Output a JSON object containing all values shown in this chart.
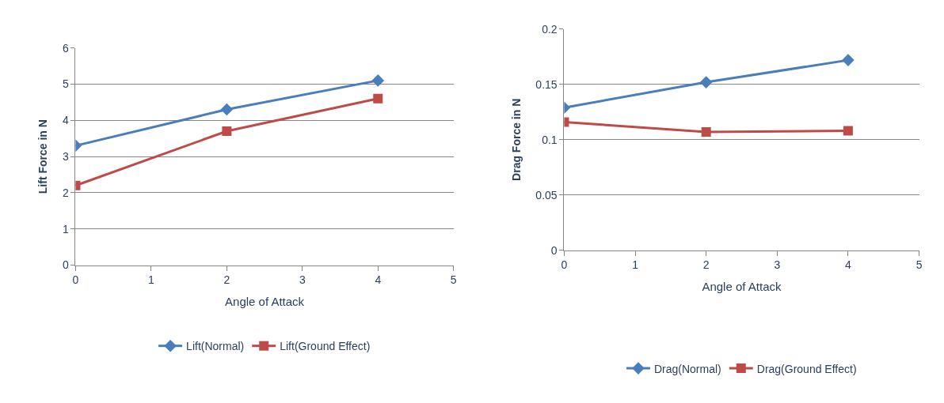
{
  "chart_data": [
    {
      "type": "line",
      "xlabel": "Angle of Attack",
      "ylabel": "Lift Force in N",
      "xlim": [
        0,
        5
      ],
      "xticks": [
        0,
        1,
        2,
        3,
        4,
        5
      ],
      "ylim": [
        0,
        6
      ],
      "yticks": [
        0,
        1,
        2,
        3,
        4,
        5,
        6
      ],
      "grid": "y",
      "legend": "bottom",
      "x": [
        0,
        2,
        4
      ],
      "series": [
        {
          "name": "Lift(Normal)",
          "color": "#4a7ebb",
          "marker": "diamond",
          "values": [
            3.3,
            4.3,
            5.1
          ]
        },
        {
          "name": "Lift(Ground Effect)",
          "color": "#be4b48",
          "marker": "square",
          "values": [
            2.2,
            3.7,
            4.6
          ]
        }
      ]
    },
    {
      "type": "line",
      "xlabel": "Angle of Attack",
      "ylabel": "Drag Force in N",
      "xlim": [
        0,
        5
      ],
      "xticks": [
        0,
        1,
        2,
        3,
        4,
        5
      ],
      "ylim": [
        0,
        0.2
      ],
      "yticks": [
        0,
        0.05,
        0.1,
        0.15,
        0.2
      ],
      "grid": "y",
      "legend": "bottom",
      "x": [
        0,
        2,
        4
      ],
      "series": [
        {
          "name": "Drag(Normal)",
          "color": "#4a7ebb",
          "marker": "diamond",
          "values": [
            0.129,
            0.152,
            0.172
          ]
        },
        {
          "name": "Drag(Ground Effect)",
          "color": "#be4b48",
          "marker": "square",
          "values": [
            0.116,
            0.107,
            0.108
          ]
        }
      ]
    }
  ]
}
